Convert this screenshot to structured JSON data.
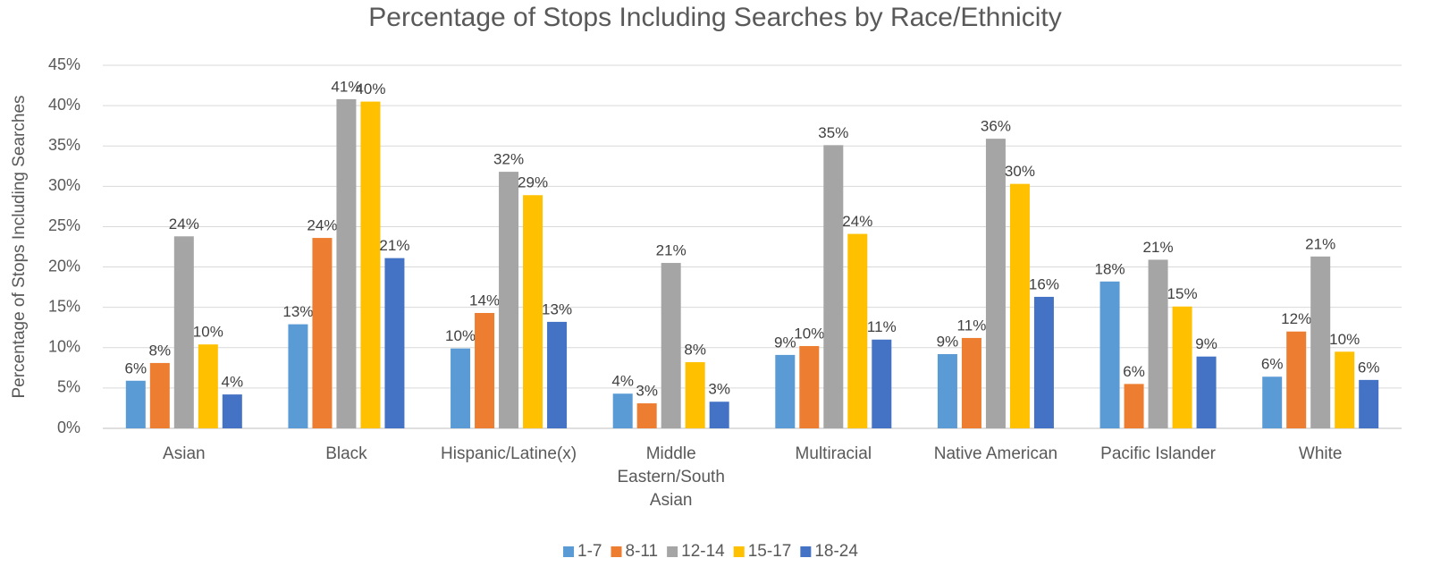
{
  "chart_data": {
    "type": "bar",
    "title": "Percentage of Stops Including Searches by Race/Ethnicity",
    "y_label": "Percentage of Stops Including Searches",
    "categories": [
      "Asian",
      "Black",
      "Hispanic/Latine(x)",
      "Middle Eastern/South Asian",
      "Multiracial",
      "Native American",
      "Pacific Islander",
      "White"
    ],
    "series": [
      {
        "name": "1-7",
        "color": "#5b9bd5",
        "values": [
          5.9,
          12.9,
          9.9,
          4.3,
          9.1,
          9.2,
          18.2,
          6.4
        ],
        "value_labels": [
          "6%",
          "13%",
          "10%",
          "4%",
          "9%",
          "9%",
          "18%",
          "6%"
        ]
      },
      {
        "name": "8-11",
        "color": "#ed7d31",
        "values": [
          8.1,
          23.6,
          14.3,
          3.1,
          10.2,
          11.2,
          5.5,
          12.0
        ],
        "value_labels": [
          "8%",
          "24%",
          "14%",
          "3%",
          "10%",
          "11%",
          "6%",
          "12%"
        ]
      },
      {
        "name": "12-14",
        "color": "#a5a5a5",
        "values": [
          23.8,
          40.8,
          31.8,
          20.5,
          35.1,
          35.9,
          20.9,
          21.3
        ],
        "value_labels": [
          "24%",
          "41%",
          "32%",
          "21%",
          "35%",
          "36%",
          "21%",
          "21%"
        ]
      },
      {
        "name": "15-17",
        "color": "#ffc000",
        "values": [
          10.4,
          40.5,
          28.9,
          8.2,
          24.1,
          30.3,
          15.1,
          9.5
        ],
        "value_labels": [
          "10%",
          "40%",
          "29%",
          "8%",
          "24%",
          "30%",
          "15%",
          "10%"
        ]
      },
      {
        "name": "18-24",
        "color": "#4472c4",
        "values": [
          4.2,
          21.1,
          13.2,
          3.3,
          11.0,
          16.3,
          8.9,
          6.0
        ],
        "value_labels": [
          "4%",
          "21%",
          "13%",
          "3%",
          "11%",
          "16%",
          "9%",
          "6%"
        ]
      }
    ],
    "ylim": [
      0,
      45
    ],
    "yticks": [
      {
        "value": 0,
        "label": "0%"
      },
      {
        "value": 5,
        "label": "5%"
      },
      {
        "value": 10,
        "label": "10%"
      },
      {
        "value": 15,
        "label": "15%"
      },
      {
        "value": 20,
        "label": "20%"
      },
      {
        "value": 25,
        "label": "25%"
      },
      {
        "value": 30,
        "label": "30%"
      },
      {
        "value": 35,
        "label": "35%"
      },
      {
        "value": 40,
        "label": "40%"
      },
      {
        "value": 45,
        "label": "45%"
      }
    ],
    "grid": true,
    "legend": "bottom"
  }
}
